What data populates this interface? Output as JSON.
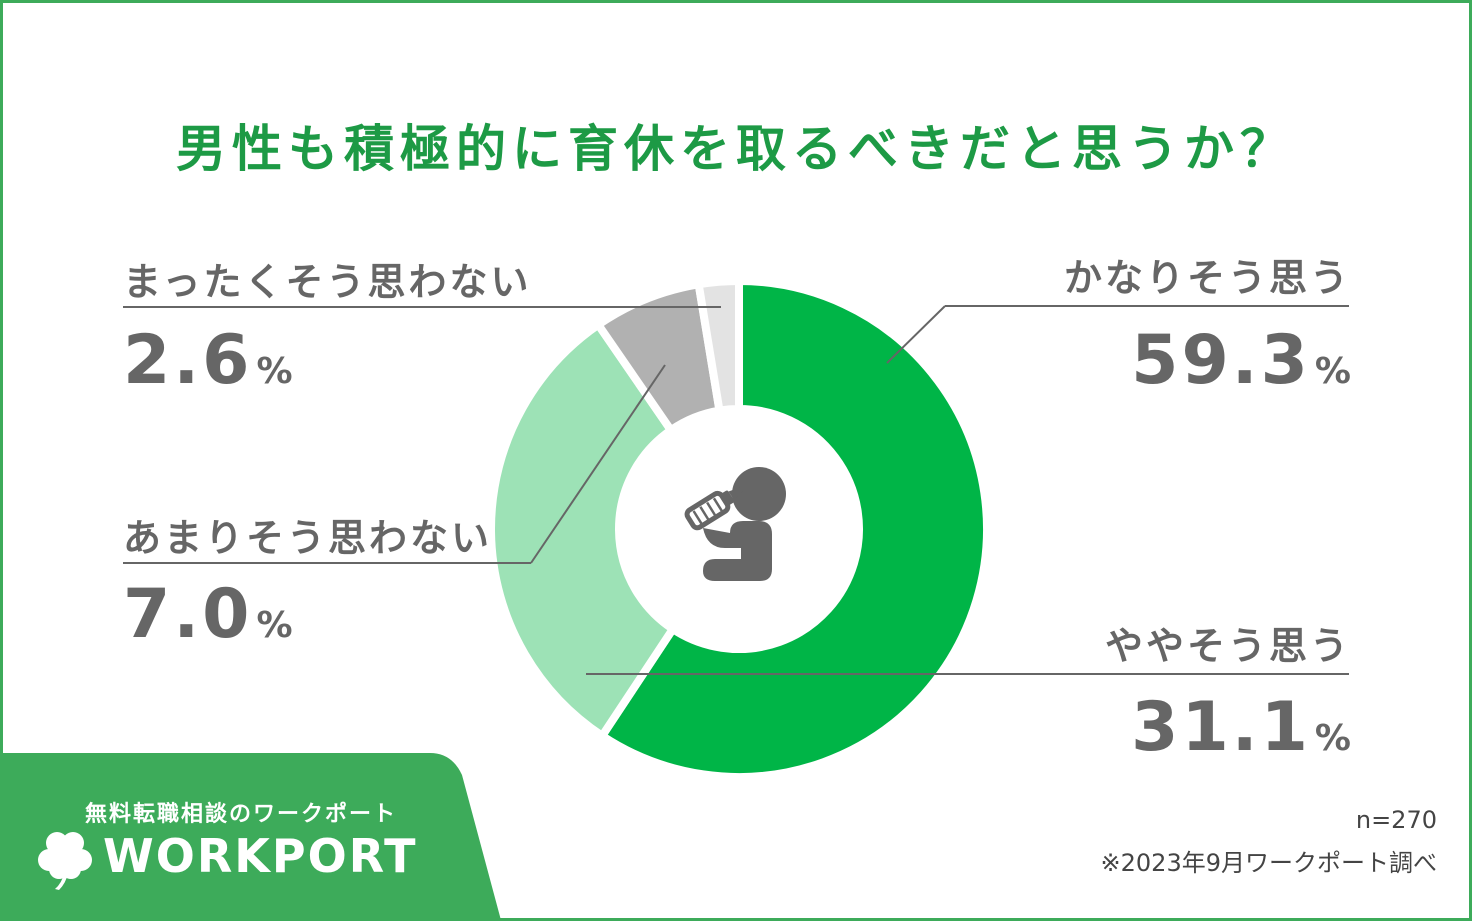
{
  "chart_data": {
    "type": "donut",
    "title": "男性も積極的に育休を取るべきだと思うか？",
    "unit": "%",
    "slices": [
      {
        "label": "かなりそう思う",
        "value": 59.3,
        "display": "59.3",
        "color": "#00b547"
      },
      {
        "label": "ややそう思う",
        "value": 31.1,
        "display": "31.1",
        "color": "#9de2b6"
      },
      {
        "label": "あまりそう思わない",
        "value": 7.0,
        "display": "7.0",
        "color": "#b1b1b1"
      },
      {
        "label": "まったくそう思わない",
        "value": 2.6,
        "display": "2.6",
        "color": "#e3e3e3"
      }
    ],
    "center_icon": "person-with-baby-bottle-icon"
  },
  "footer": {
    "tagline": "無料転職相談のワークポート",
    "logo": "WORKPORT",
    "sample_size": "n=270",
    "source": "※2023年9月ワークポート調べ"
  },
  "colors": {
    "title": "#1d9a45",
    "brand": "#3dab5a",
    "text": "#666666"
  }
}
